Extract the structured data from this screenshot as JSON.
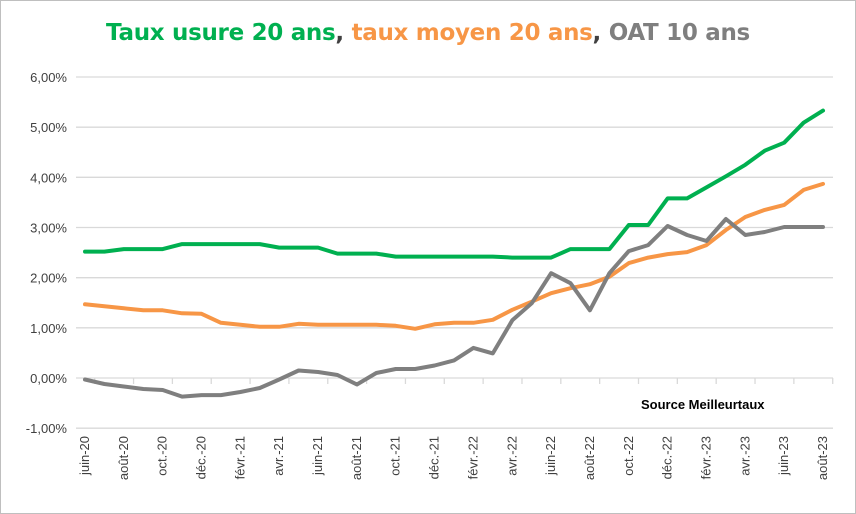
{
  "chart_data": {
    "type": "line",
    "title_parts": [
      {
        "text": "Taux usure 20 ans",
        "color": "#00b050"
      },
      {
        "text": ", ",
        "color": "#404040"
      },
      {
        "text": "taux moyen 20 ans",
        "color": "#f79646"
      },
      {
        "text": ", ",
        "color": "#404040"
      },
      {
        "text": "OAT 10 ans",
        "color": "#7f7f7f"
      }
    ],
    "categories": [
      "juin-20",
      "juil.-20",
      "août-20",
      "sept.-20",
      "oct.-20",
      "nov.-20",
      "déc.-20",
      "janv.-21",
      "févr.-21",
      "mars-21",
      "avr.-21",
      "mai-21",
      "juin-21",
      "juil.-21",
      "août-21",
      "sept.-21",
      "oct.-21",
      "nov.-21",
      "déc.-21",
      "janv.-22",
      "févr.-22",
      "mars-22",
      "avr.-22",
      "mai-22",
      "juin-22",
      "juil.-22",
      "août-22",
      "sept.-22",
      "oct.-22",
      "nov.-22",
      "déc.-22",
      "janv.-23",
      "févr.-23",
      "mars-23",
      "avr.-23",
      "mai-23",
      "juin-23",
      "juil.-23",
      "août-23"
    ],
    "x_tick_labels": [
      "juin-20",
      "août-20",
      "oct.-20",
      "déc.-20",
      "févr.-21",
      "avr.-21",
      "juin-21",
      "août-21",
      "oct.-21",
      "déc.-21",
      "févr.-22",
      "avr.-22",
      "juin-22",
      "août-22",
      "oct.-22",
      "déc.-22",
      "févr.-23",
      "avr.-23",
      "juin-23",
      "août-23"
    ],
    "series": [
      {
        "key": "usure",
        "color": "#00b050",
        "values": [
          2.52,
          2.52,
          2.57,
          2.57,
          2.57,
          2.67,
          2.67,
          2.67,
          2.67,
          2.67,
          2.6,
          2.6,
          2.6,
          2.48,
          2.48,
          2.48,
          2.42,
          2.42,
          2.42,
          2.42,
          2.42,
          2.42,
          2.4,
          2.4,
          2.4,
          2.57,
          2.57,
          2.57,
          3.05,
          3.05,
          3.58,
          3.58,
          3.8,
          4.02,
          4.25,
          4.53,
          4.69,
          5.09,
          5.33
        ]
      },
      {
        "key": "moyen",
        "color": "#f79646",
        "values": [
          1.47,
          1.43,
          1.39,
          1.35,
          1.35,
          1.29,
          1.28,
          1.1,
          1.06,
          1.02,
          1.02,
          1.08,
          1.06,
          1.06,
          1.06,
          1.06,
          1.04,
          0.98,
          1.07,
          1.1,
          1.1,
          1.16,
          1.36,
          1.52,
          1.69,
          1.79,
          1.87,
          2.02,
          2.29,
          2.4,
          2.47,
          2.51,
          2.65,
          2.95,
          3.21,
          3.35,
          3.45,
          3.75,
          3.87
        ]
      },
      {
        "key": "oat",
        "color": "#7f7f7f",
        "values": [
          -0.03,
          -0.12,
          -0.17,
          -0.22,
          -0.24,
          -0.37,
          -0.34,
          -0.34,
          -0.28,
          -0.2,
          -0.03,
          0.15,
          0.12,
          0.06,
          -0.13,
          0.1,
          0.18,
          0.18,
          0.25,
          0.35,
          0.6,
          0.49,
          1.15,
          1.49,
          2.09,
          1.89,
          1.35,
          2.09,
          2.53,
          2.65,
          3.03,
          2.85,
          2.73,
          3.17,
          2.85,
          2.91,
          3.01,
          3.01,
          3.01
        ]
      }
    ],
    "y_ticks": [
      6,
      5,
      4,
      3,
      2,
      1,
      0,
      -1
    ],
    "y_tick_labels": [
      "6,00%",
      "5,00%",
      "4,00%",
      "3,00%",
      "2,00%",
      "1,00%",
      "0,00%",
      "-1,00%"
    ],
    "ylim": [
      -1,
      6
    ],
    "grid": true,
    "annotation": "Source Meilleurtaux",
    "xlabel": "",
    "ylabel": ""
  }
}
